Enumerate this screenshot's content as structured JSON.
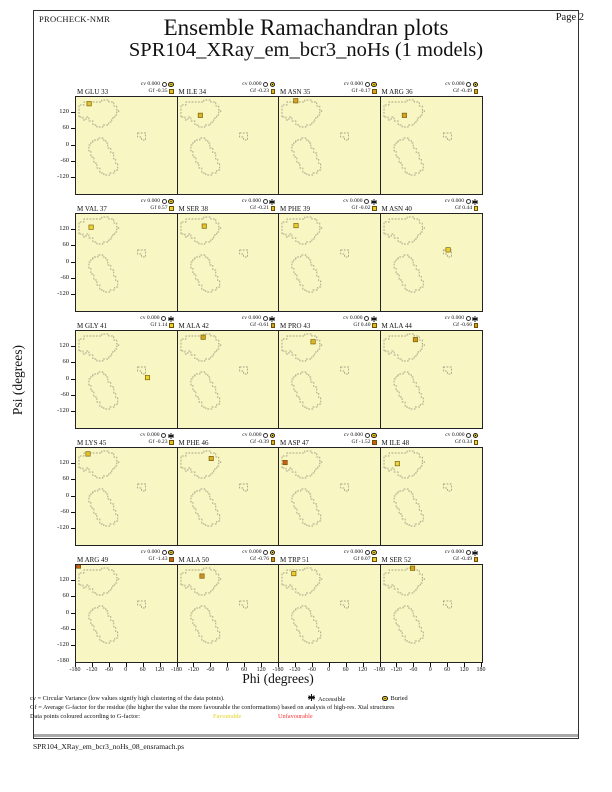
{
  "header": {
    "app": "PROCHECK-NMR",
    "page_label": "Page  2",
    "title": "Ensemble Ramachandran plots",
    "subtitle": "SPR104_XRay_em_bcr3_noHs (1 models)"
  },
  "axes": {
    "x_label": "Phi (degrees)",
    "y_label": "Psi (degrees)",
    "x_tick_labels": [
      "-180",
      "-120",
      "-60",
      "0",
      "60",
      "120"
    ],
    "x_last_tick_label": "180",
    "y_tick_labels": [
      "120",
      "60",
      "0",
      "-60",
      "-120"
    ],
    "y_bottom_tick_label": "-180",
    "phi_range": [
      -180,
      180
    ],
    "psi_range": [
      -180,
      180
    ]
  },
  "chart_data": {
    "type": "scatter",
    "grid": {
      "rows": 5,
      "cols": 4
    },
    "cv_prefix": "cv",
    "gf_prefix": "Gf",
    "plots": [
      {
        "label": "M GLU 33",
        "cv": "0.000",
        "gf": "-0.35",
        "surface": "buried",
        "point": {
          "phi": -133,
          "psi": 155,
          "color": "#e3c128"
        }
      },
      {
        "label": "M ILE 34",
        "cv": "0.000",
        "gf": "-0.23",
        "surface": "buried",
        "point": {
          "phi": -100,
          "psi": 112,
          "color": "#dcb426"
        }
      },
      {
        "label": "M ASN 35",
        "cv": "0.000",
        "gf": "-0.17",
        "surface": "buried",
        "point": {
          "phi": -120,
          "psi": 166,
          "color": "#d9a026"
        }
      },
      {
        "label": "M ARG 36",
        "cv": "0.000",
        "gf": "-0.49",
        "surface": "buried",
        "point": {
          "phi": -97,
          "psi": 112,
          "color": "#d2a21f"
        }
      },
      {
        "label": "M VAL 37",
        "cv": "0.000",
        "gf": "0.57",
        "surface": "buried",
        "point": {
          "phi": -126,
          "psi": 131,
          "color": "#ecd12f"
        }
      },
      {
        "label": "M SER 38",
        "cv": "0.000",
        "gf": "-0.21",
        "surface": "accessible",
        "point": {
          "phi": -86,
          "psi": 135,
          "color": "#e3c128"
        }
      },
      {
        "label": "M PHE 39",
        "cv": "0.000",
        "gf": "-0.02",
        "surface": "accessible",
        "point": {
          "phi": -119,
          "psi": 137,
          "color": "#e8cc2d"
        }
      },
      {
        "label": "M ASN 40",
        "cv": "0.000",
        "gf": "0.44",
        "surface": "accessible",
        "point": {
          "phi": 58,
          "psi": 47,
          "color": "#ecd12f"
        }
      },
      {
        "label": "M GLY 41",
        "cv": "0.000",
        "gf": "1.14",
        "surface": "accessible",
        "point": {
          "phi": 76,
          "psi": 7,
          "color": "#ecd12f"
        }
      },
      {
        "label": "M ALA 42",
        "cv": "0.000",
        "gf": "-0.61",
        "surface": "accessible",
        "point": {
          "phi": -90,
          "psi": 157,
          "color": "#d2a21f"
        }
      },
      {
        "label": "M PRO 43",
        "cv": "0.000",
        "gf": "0.40",
        "surface": "accessible",
        "point": {
          "phi": -58,
          "psi": 140,
          "color": "#e0b826"
        }
      },
      {
        "label": "M ALA 44",
        "cv": "0.000",
        "gf": "-0.66",
        "surface": "accessible",
        "point": {
          "phi": -58,
          "psi": 148,
          "color": "#cf9a1d"
        }
      },
      {
        "label": "M LYS 45",
        "cv": "0.000",
        "gf": "-0.23",
        "surface": "accessible",
        "point": {
          "phi": -137,
          "psi": 158,
          "color": "#e3c128"
        }
      },
      {
        "label": "M PHE 46",
        "cv": "0.000",
        "gf": "-0.39",
        "surface": "buried",
        "point": {
          "phi": -61,
          "psi": 141,
          "color": "#d9ad24"
        }
      },
      {
        "label": "M ASP 47",
        "cv": "0.000",
        "gf": "-1.52",
        "surface": "buried",
        "point": {
          "phi": -158,
          "psi": 126,
          "color": "#cd5c16"
        }
      },
      {
        "label": "M ILE 48",
        "cv": "0.000",
        "gf": "0.34",
        "surface": "buried",
        "point": {
          "phi": -122,
          "psi": 122,
          "color": "#ecd544"
        }
      },
      {
        "label": "M ARG 49",
        "cv": "0.000",
        "gf": "-1.43",
        "surface": "buried",
        "point": {
          "phi": -171,
          "psi": 176,
          "color": "#cd5c16"
        }
      },
      {
        "label": "M ALA 50",
        "cv": "0.000",
        "gf": "-0.76",
        "surface": "buried",
        "point": {
          "phi": -94,
          "psi": 139,
          "color": "#cf8f1d"
        }
      },
      {
        "label": "M TRP 51",
        "cv": "0.000",
        "gf": "0.07",
        "surface": "buried",
        "point": {
          "phi": -127,
          "psi": 148,
          "color": "#e8cc2d"
        }
      },
      {
        "label": "M SER 52",
        "cv": "0.000",
        "gf": "-0.49",
        "surface": "accessible",
        "point": {
          "phi": -68,
          "psi": 168,
          "color": "#d9a520"
        }
      }
    ]
  },
  "legend": {
    "cv_line": "cv = Circular Variance (low values signify high clustering of the data points).",
    "accessible_label": "Accessible",
    "buried_label": "Buried",
    "gf_line": "Gf = Average G-factor for the residue (the higher the value the more favourable the conformations) based on analysis of high-res. Xtal structures",
    "points_line": "Data points coloured according to G-factor:",
    "favourable_label": "Favourable",
    "unfavourable_label": "Unfavourable"
  },
  "footer": {
    "filename": "SPR104_XRay_em_bcr3_noHs_08_ensramach.ps"
  },
  "colors": {
    "plot_bg": "#f8f6c2",
    "region_dash": "#8a8878",
    "point_border": "#6b5300",
    "buried_icon": "#e8c71e",
    "favourable": "#e3d020",
    "unfavourable": "#ff3333"
  }
}
